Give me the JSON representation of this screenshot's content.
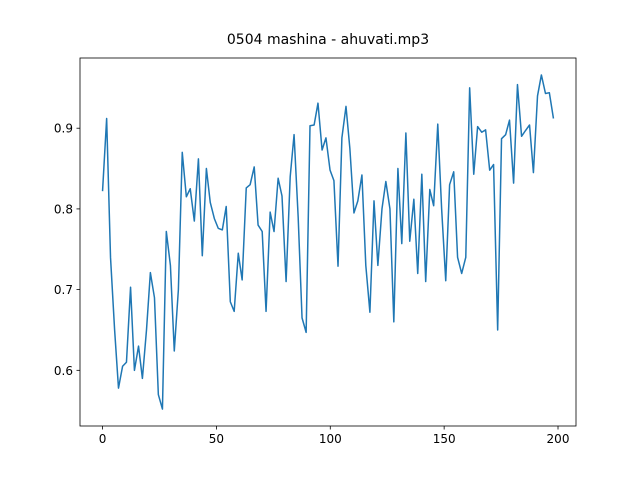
{
  "chart_data": {
    "type": "line",
    "title": "0504 mashina - ahuvati.mp3",
    "x": [
      0,
      1.8,
      3.5,
      5.3,
      7.0,
      8.8,
      10.5,
      12.3,
      14.0,
      15.8,
      17.5,
      19.3,
      21.0,
      22.8,
      24.5,
      26.3,
      28.0,
      29.8,
      31.5,
      33.3,
      35.0,
      36.8,
      38.5,
      40.3,
      42.1,
      43.8,
      45.6,
      47.3,
      49.1,
      50.8,
      52.6,
      54.3,
      56.1,
      57.8,
      59.6,
      61.3,
      63.1,
      64.8,
      66.6,
      68.3,
      70.1,
      71.8,
      73.6,
      75.3,
      77.1,
      78.8,
      80.6,
      82.4,
      84.1,
      85.9,
      87.6,
      89.4,
      91.1,
      92.9,
      94.6,
      96.4,
      98.1,
      99.9,
      101.6,
      103.4,
      105.1,
      106.9,
      108.6,
      110.4,
      112.1,
      113.9,
      115.6,
      117.4,
      119.2,
      120.9,
      122.7,
      124.4,
      126.2,
      127.9,
      129.7,
      131.4,
      133.2,
      134.9,
      136.7,
      138.4,
      140.2,
      141.9,
      143.7,
      145.4,
      147.2,
      148.9,
      150.7,
      152.4,
      154.2,
      155.9,
      157.7,
      159.5,
      161.2,
      163.0,
      164.7,
      166.5,
      168.2,
      170.0,
      171.7,
      173.5,
      175.2,
      177.0,
      178.7,
      180.5,
      182.2,
      184.0,
      185.7,
      187.5,
      189.2,
      191.0,
      192.7,
      194.5,
      196.2,
      198.0
    ],
    "series": [
      {
        "color": "#1f77b4",
        "values": [
          0.822,
          0.912,
          0.74,
          0.65,
          0.578,
          0.605,
          0.61,
          0.703,
          0.6,
          0.63,
          0.59,
          0.65,
          0.721,
          0.69,
          0.57,
          0.552,
          0.772,
          0.73,
          0.624,
          0.7,
          0.87,
          0.815,
          0.825,
          0.785,
          0.862,
          0.742,
          0.85,
          0.808,
          0.788,
          0.776,
          0.774,
          0.803,
          0.685,
          0.673,
          0.745,
          0.712,
          0.826,
          0.83,
          0.852,
          0.78,
          0.772,
          0.673,
          0.796,
          0.772,
          0.838,
          0.816,
          0.71,
          0.84,
          0.892,
          0.79,
          0.665,
          0.647,
          0.903,
          0.904,
          0.931,
          0.873,
          0.888,
          0.848,
          0.835,
          0.729,
          0.888,
          0.927,
          0.875,
          0.795,
          0.81,
          0.842,
          0.73,
          0.672,
          0.81,
          0.73,
          0.8,
          0.834,
          0.8,
          0.66,
          0.85,
          0.757,
          0.894,
          0.76,
          0.812,
          0.72,
          0.843,
          0.71,
          0.824,
          0.804,
          0.905,
          0.8,
          0.711,
          0.83,
          0.846,
          0.74,
          0.72,
          0.74,
          0.95,
          0.843,
          0.902,
          0.895,
          0.898,
          0.848,
          0.855,
          0.65,
          0.887,
          0.892,
          0.91,
          0.832,
          0.954,
          0.89,
          0.897,
          0.904,
          0.845,
          0.94,
          0.966,
          0.943,
          0.944,
          0.912
        ]
      }
    ],
    "xlim": [
      -9.9,
      207.9
    ],
    "ylim": [
      0.531,
      0.987
    ],
    "xticks": [
      0,
      50,
      100,
      150,
      200
    ],
    "yticks": [
      0.6,
      0.7,
      0.8,
      0.9
    ],
    "grid": false
  }
}
